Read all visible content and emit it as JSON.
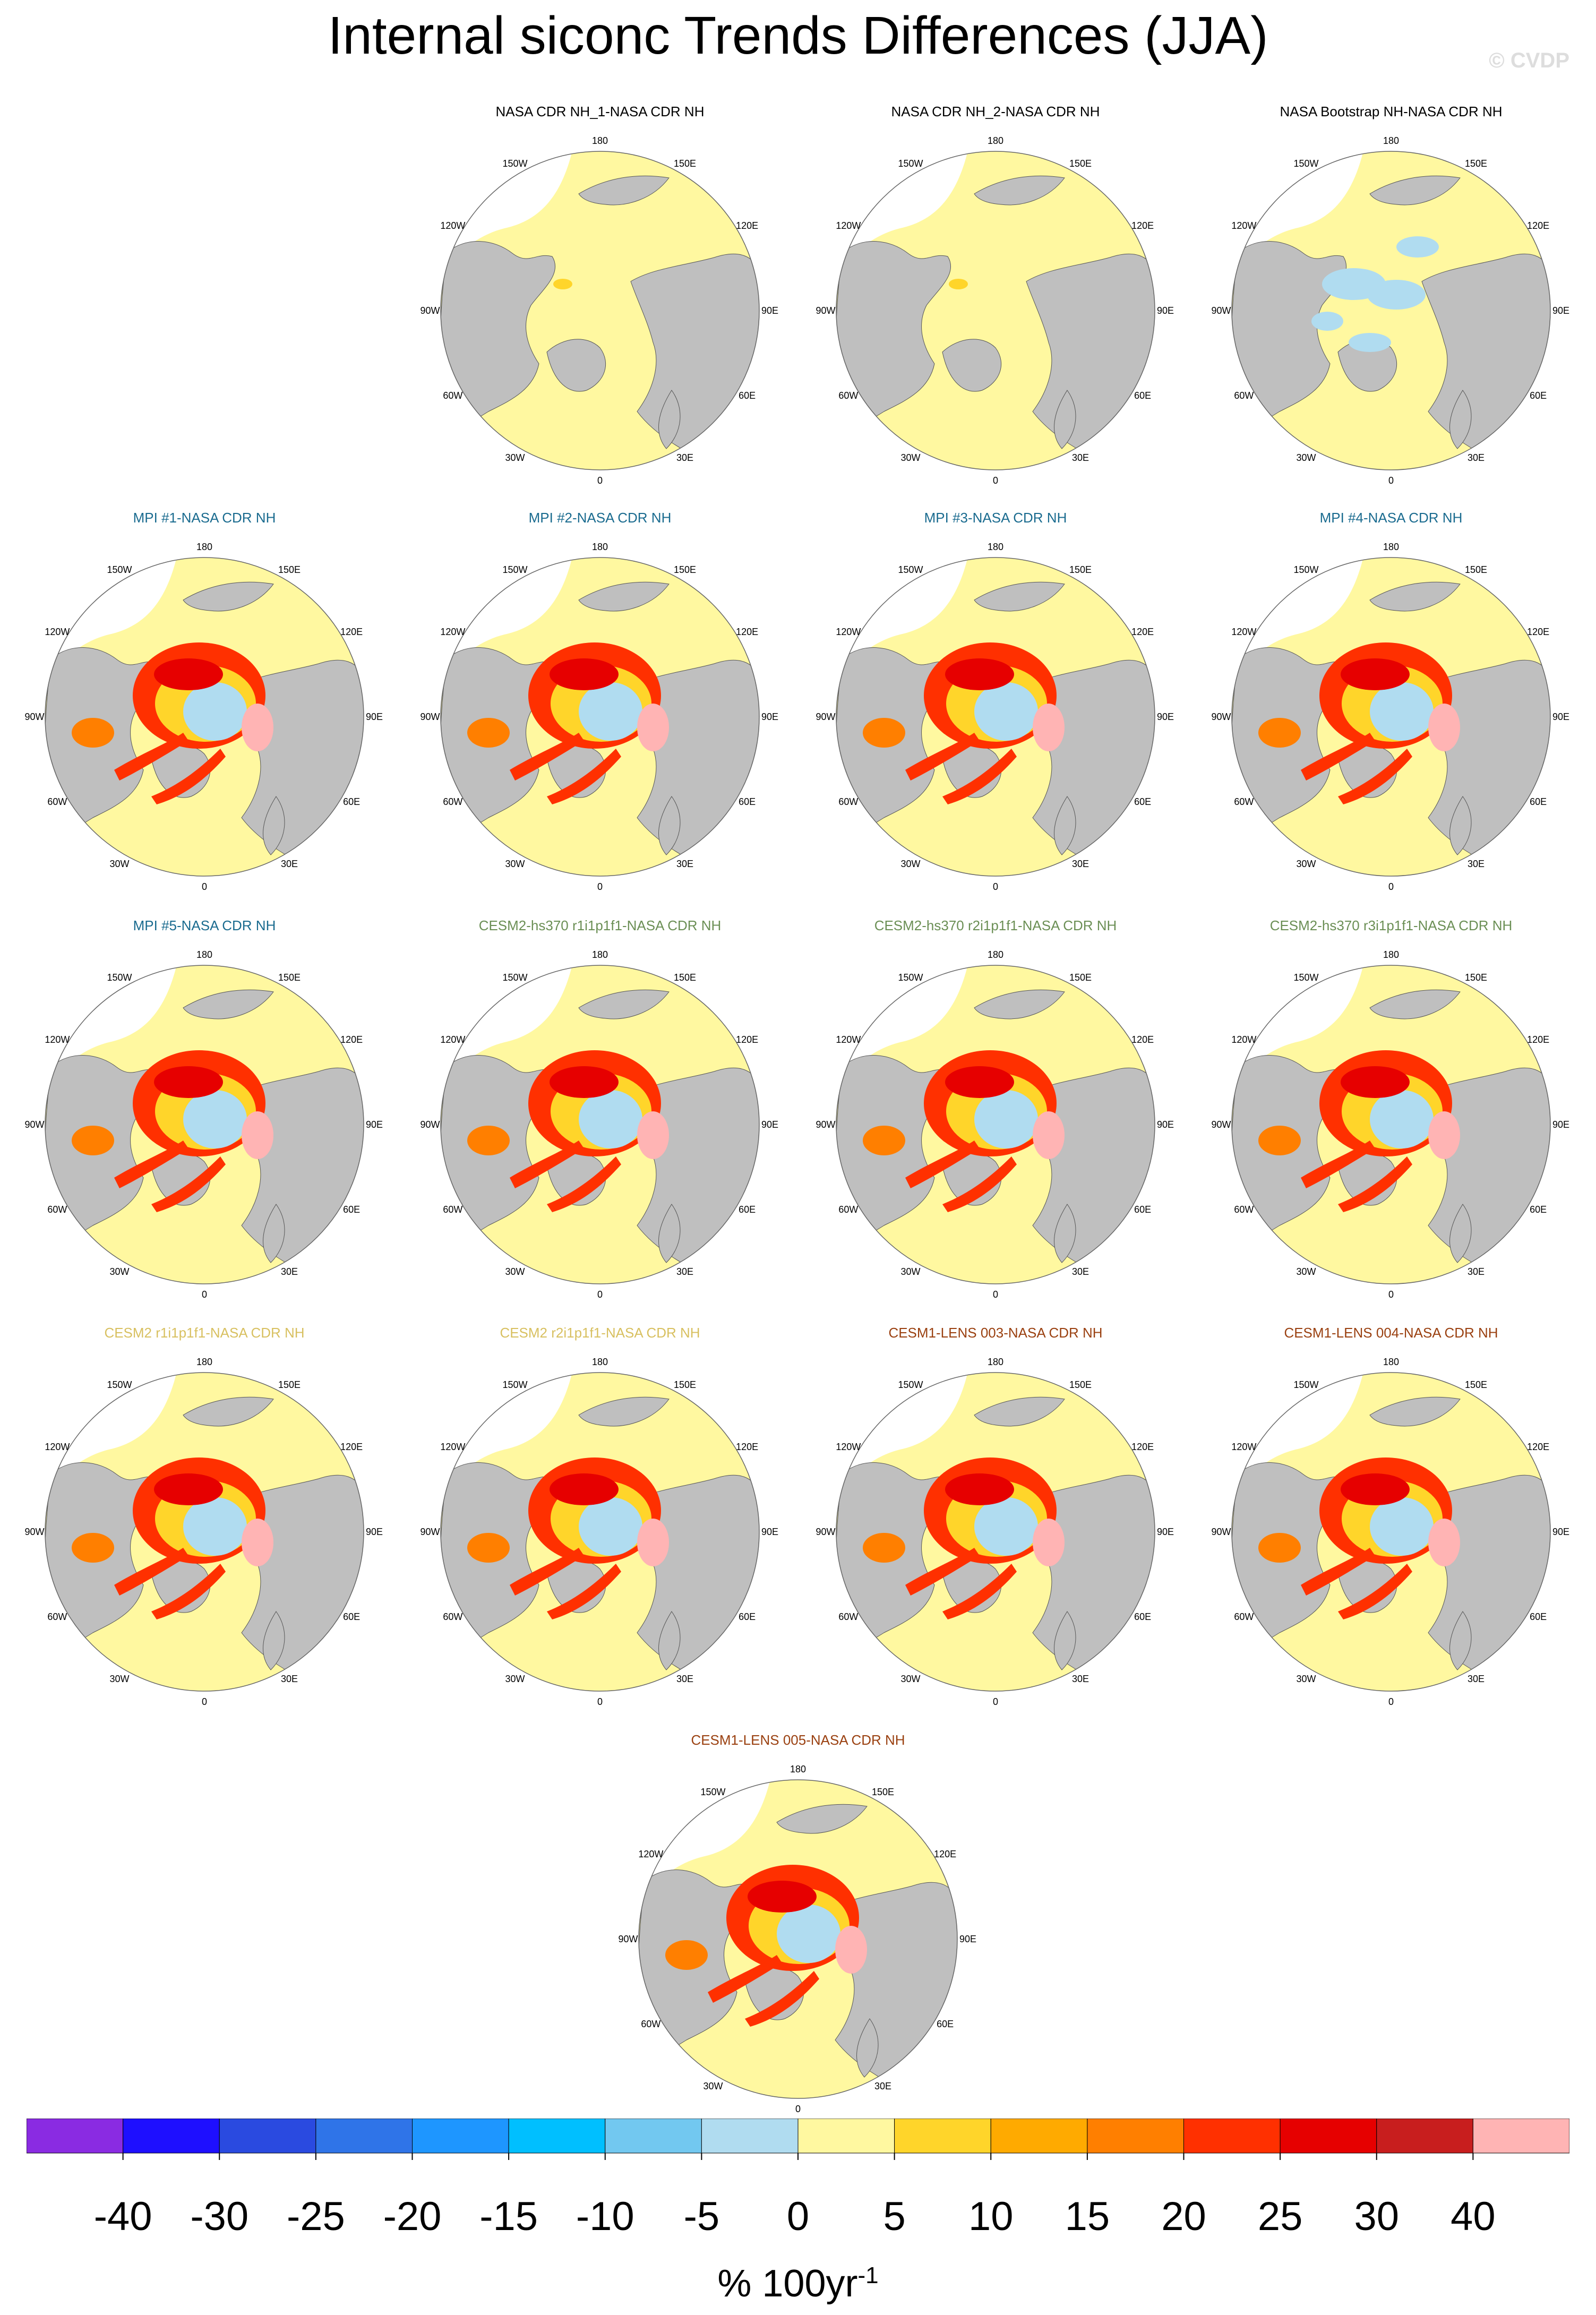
{
  "title": "Internal siconc Trends Differences (JJA)",
  "credit": "© CVDP",
  "longitude_labels": [
    "180",
    "150E",
    "120E",
    "90E",
    "60E",
    "30E",
    "0",
    "30W",
    "60W",
    "90W",
    "120W",
    "150W"
  ],
  "panels": [
    {
      "title": "NASA CDR NH_1-NASA CDR NH",
      "title_color": "#000000",
      "pattern": "obs1"
    },
    {
      "title": "NASA CDR NH_2-NASA CDR NH",
      "title_color": "#000000",
      "pattern": "obs1"
    },
    {
      "title": "NASA Bootstrap NH-NASA CDR NH",
      "title_color": "#000000",
      "pattern": "obs2"
    },
    {
      "title": "MPI #1-NASA CDR NH",
      "title_color": "#1a6b8f",
      "pattern": "model"
    },
    {
      "title": "MPI #2-NASA CDR NH",
      "title_color": "#1a6b8f",
      "pattern": "model"
    },
    {
      "title": "MPI #3-NASA CDR NH",
      "title_color": "#1a6b8f",
      "pattern": "model"
    },
    {
      "title": "MPI #4-NASA CDR NH",
      "title_color": "#1a6b8f",
      "pattern": "model"
    },
    {
      "title": "MPI #5-NASA CDR NH",
      "title_color": "#1a6b8f",
      "pattern": "model"
    },
    {
      "title": "CESM2-hs370 r1i1p1f1-NASA CDR NH",
      "title_color": "#6b8f55",
      "pattern": "model"
    },
    {
      "title": "CESM2-hs370 r2i1p1f1-NASA CDR NH",
      "title_color": "#6b8f55",
      "pattern": "model"
    },
    {
      "title": "CESM2-hs370 r3i1p1f1-NASA CDR NH",
      "title_color": "#6b8f55",
      "pattern": "model"
    },
    {
      "title": "CESM2 r1i1p1f1-NASA CDR NH",
      "title_color": "#d8c060",
      "pattern": "model"
    },
    {
      "title": "CESM2 r2i1p1f1-NASA CDR NH",
      "title_color": "#d8c060",
      "pattern": "model"
    },
    {
      "title": "CESM1-LENS 003-NASA CDR NH",
      "title_color": "#9a4010",
      "pattern": "model"
    },
    {
      "title": "CESM1-LENS 004-NASA CDR NH",
      "title_color": "#9a4010",
      "pattern": "model"
    },
    {
      "title": "CESM1-LENS 005-NASA CDR NH",
      "title_color": "#9a4010",
      "pattern": "model"
    }
  ],
  "colorbar": {
    "colors": [
      "#8a2be2",
      "#1e0fff",
      "#2a4ae0",
      "#2f74e8",
      "#1e96ff",
      "#00bfff",
      "#72c8f0",
      "#b0dcf0",
      "#fff8a0",
      "#ffd52a",
      "#ffaa00",
      "#ff7f00",
      "#ff3000",
      "#e60000",
      "#c81e1e",
      "#ffb4b4"
    ],
    "tick_labels": [
      "-40",
      "-30",
      "-25",
      "-20",
      "-15",
      "-10",
      "-5",
      "0",
      "5",
      "10",
      "15",
      "20",
      "25",
      "30",
      "40"
    ],
    "units": "% 100yr",
    "units_exponent": "-1"
  },
  "map_colors": {
    "land": "#bfbfbf",
    "ocean_zero": "#fff8a0",
    "missing": "#ffffff"
  }
}
